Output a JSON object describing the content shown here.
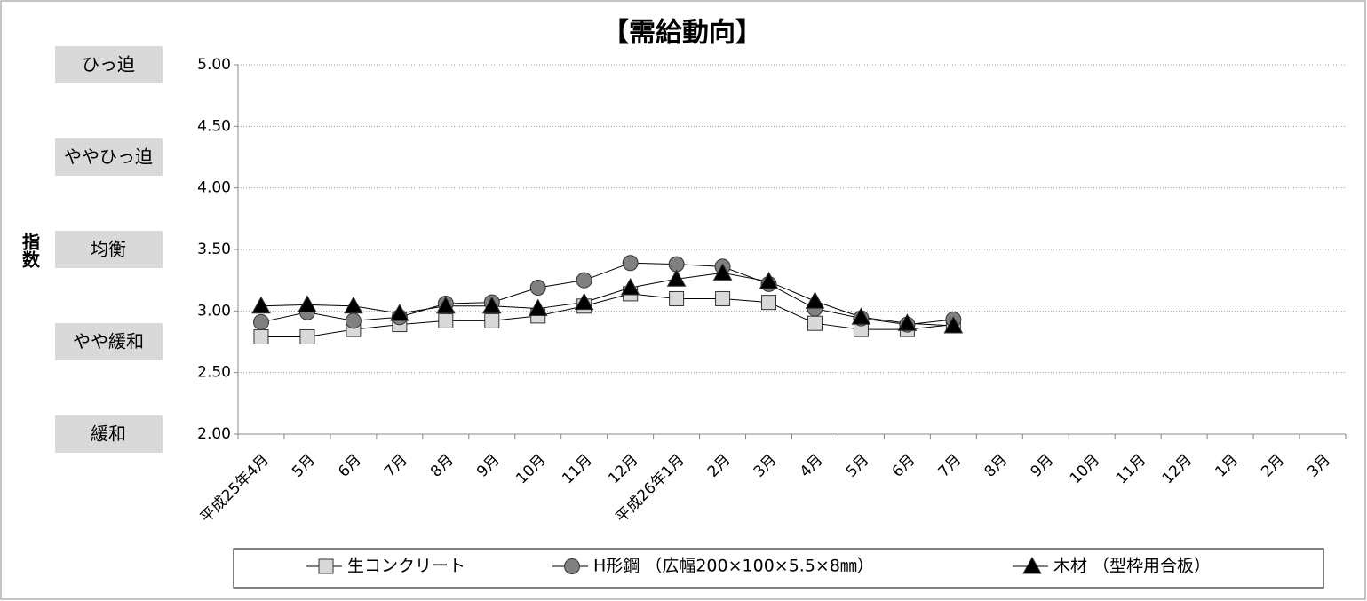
{
  "chart_data": {
    "type": "line",
    "title": "【需給動向】",
    "y_label": "指数",
    "categories": [
      "平成25年4月",
      "5月",
      "6月",
      "7月",
      "8月",
      "9月",
      "10月",
      "11月",
      "12月",
      "平成26年1月",
      "2月",
      "3月",
      "4月",
      "5月",
      "6月",
      "7月",
      "8月",
      "9月",
      "10月",
      "11月",
      "12月",
      "1月",
      "2月",
      "3月"
    ],
    "series": [
      {
        "name": "生コンクリート",
        "color": "#d9d9d9",
        "marker": "square",
        "values": [
          2.79,
          2.79,
          2.85,
          2.89,
          2.92,
          2.92,
          2.96,
          3.04,
          3.14,
          3.1,
          3.1,
          3.07,
          2.9,
          2.85,
          2.85,
          2.89,
          null,
          null,
          null,
          null,
          null,
          null,
          null,
          null
        ]
      },
      {
        "name": "H形鋼 （広幅200×100×5.5×8㎜）",
        "color": "#808080",
        "marker": "circle",
        "values": [
          2.91,
          2.99,
          2.92,
          2.95,
          3.06,
          3.07,
          3.19,
          3.25,
          3.39,
          3.38,
          3.36,
          3.22,
          3.02,
          2.94,
          2.89,
          2.93,
          null,
          null,
          null,
          null,
          null,
          null,
          null,
          null
        ]
      },
      {
        "name": "木材 （型枠用合板）",
        "color": "#000000",
        "marker": "triangle",
        "values": [
          3.04,
          3.05,
          3.04,
          2.98,
          3.04,
          3.04,
          3.02,
          3.07,
          3.19,
          3.26,
          3.31,
          3.24,
          3.08,
          2.95,
          2.9,
          2.88,
          null,
          null,
          null,
          null,
          null,
          null,
          null,
          null
        ]
      }
    ],
    "ylim": [
      2,
      5
    ],
    "yticks": [
      {
        "value": 2,
        "label": "2.00"
      },
      {
        "value": 2.5,
        "label": "2.50"
      },
      {
        "value": 3,
        "label": "3.00"
      },
      {
        "value": 3.5,
        "label": "3.50"
      },
      {
        "value": 4,
        "label": "4.00"
      },
      {
        "value": 4.5,
        "label": "4.50"
      },
      {
        "value": 5,
        "label": "5.00"
      }
    ],
    "band_labels": [
      {
        "value": 5,
        "label": "ひっ迫"
      },
      {
        "value": 4.25,
        "label": "ややひっ迫"
      },
      {
        "value": 3.5,
        "label": "均衡"
      },
      {
        "value": 2.75,
        "label": "やや緩和"
      },
      {
        "value": 2,
        "label": "緩和"
      }
    ],
    "grid": true,
    "legend": "bottom"
  }
}
